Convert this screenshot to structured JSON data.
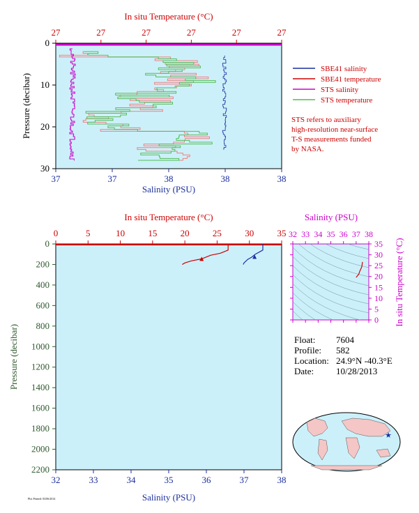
{
  "chart_data": [
    {
      "type": "line",
      "panel": "top",
      "top_axis_label": "In situ Temperature (°C)",
      "top_ticks": [
        "27",
        "27",
        "27",
        "27",
        "27",
        "27"
      ],
      "bottom_axis_label": "Salinity (PSU)",
      "bottom_ticks": [
        "37",
        "37",
        "38",
        "38",
        "38"
      ],
      "ylabel": "Pressure (decibar)",
      "yticks": [
        "0",
        "10",
        "20",
        "30"
      ],
      "ylim": [
        0,
        30
      ],
      "legend": [
        {
          "label": "SBE41 salinity",
          "color": "#1a2fa0"
        },
        {
          "label": "SBE41 temperature",
          "color": "#cc0000"
        },
        {
          "label": "STS salinity",
          "color": "#cc00cc"
        },
        {
          "label": "STS temperature",
          "color": "#55bb55"
        }
      ],
      "note": [
        "STS refers to auxiliary",
        "high-resolution near-surface",
        "T-S measurements funded",
        "by NASA."
      ]
    },
    {
      "type": "line",
      "panel": "main",
      "top_axis_label": "In situ Temperature (°C)",
      "top_ticks": [
        "0",
        "5",
        "10",
        "15",
        "20",
        "25",
        "30",
        "35"
      ],
      "bottom_axis_label": "Salinity (PSU)",
      "bottom_ticks": [
        "32",
        "33",
        "34",
        "35",
        "36",
        "37",
        "38"
      ],
      "ylabel": "Pressure (decibar)",
      "yticks": [
        "0",
        "200",
        "400",
        "600",
        "800",
        "1000",
        "1200",
        "1400",
        "1600",
        "1800",
        "2000",
        "2200"
      ],
      "xlim_temp": [
        0,
        35
      ],
      "xlim_sal": [
        32,
        38
      ],
      "ylim": [
        0,
        2200
      ],
      "series": [
        {
          "kind": "temperature",
          "color": "#cc0000",
          "points": [
            [
              26.7,
              0
            ],
            [
              26.7,
              5
            ],
            [
              27.0,
              8
            ],
            [
              26.7,
              12
            ],
            [
              26.7,
              60
            ],
            [
              25.5,
              90
            ],
            [
              24.0,
              110
            ],
            [
              22.6,
              145
            ],
            [
              21.0,
              165
            ],
            [
              20.0,
              185
            ],
            [
              19.6,
              200
            ]
          ],
          "marker": [
            22.6,
            145
          ]
        },
        {
          "kind": "salinity",
          "color": "#1a2fa0",
          "points": [
            [
              37.5,
              0
            ],
            [
              37.5,
              60
            ],
            [
              37.45,
              70
            ],
            [
              37.3,
              100
            ],
            [
              37.2,
              130
            ],
            [
              37.1,
              150
            ],
            [
              37.0,
              185
            ],
            [
              36.98,
              200
            ]
          ],
          "marker": [
            37.28,
            125
          ]
        }
      ]
    },
    {
      "type": "scatter",
      "panel": "ts-diagram",
      "xlabel": "Salinity (PSU)",
      "xticks": [
        "32",
        "33",
        "34",
        "35",
        "36",
        "37",
        "38"
      ],
      "ylabel": "In situ Temperature (°C)",
      "yticks": [
        "0",
        "5",
        "10",
        "15",
        "20",
        "25",
        "30",
        "35"
      ],
      "xlim": [
        32,
        38
      ],
      "ylim": [
        0,
        35
      ],
      "series": [
        {
          "color": "#cc0000",
          "points": [
            [
              37.0,
              19.6
            ],
            [
              37.2,
              21.0
            ],
            [
              37.3,
              22.6
            ],
            [
              37.45,
              24.5
            ],
            [
              37.5,
              26.7
            ]
          ]
        }
      ]
    }
  ],
  "float_info": [
    {
      "key": "Float:",
      "value": "7604"
    },
    {
      "key": "Profile:",
      "value": "582"
    },
    {
      "key": "Location:",
      "value": "24.9°N  -40.3°E"
    },
    {
      "key": "Date:",
      "value": "10/28/2013"
    }
  ],
  "footer": "Plot Printed: 03/06/2014",
  "colors": {
    "panel_bg": "#ccf0fa",
    "red": "#cc0000",
    "blue": "#1a2fa0",
    "magenta": "#cc00cc",
    "green": "#55bb55",
    "axis_green": "#2e5a2e"
  }
}
